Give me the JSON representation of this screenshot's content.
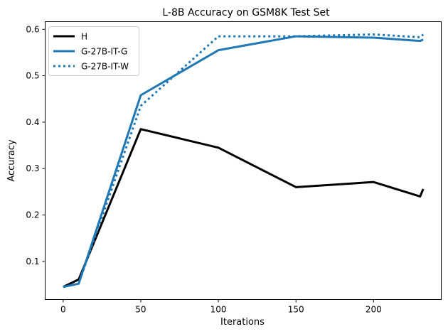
{
  "chart_data": {
    "type": "line",
    "title": "L-8B Accuracy on GSM8K Test Set",
    "xlabel": "Iterations",
    "ylabel": "Accuracy",
    "xlim": [
      -11.6,
      243.6
    ],
    "ylim": [
      0.0178,
      0.6165
    ],
    "xticks": [
      0,
      50,
      100,
      150,
      200
    ],
    "xtick_labels": [
      "0",
      "50",
      "100",
      "150",
      "200"
    ],
    "yticks": [
      0.1,
      0.2,
      0.3,
      0.4,
      0.5,
      0.6
    ],
    "ytick_labels": [
      "0.1",
      "0.2",
      "0.3",
      "0.4",
      "0.5",
      "0.6"
    ],
    "grid": false,
    "legend_position": "top-left",
    "series": [
      {
        "name": "H",
        "color": "#000000",
        "style": "solid",
        "x": [
          0,
          10,
          50,
          100,
          150,
          200,
          230,
          232
        ],
        "y": [
          0.045,
          0.061,
          0.385,
          0.345,
          0.26,
          0.271,
          0.24,
          0.256
        ]
      },
      {
        "name": "G-27B-IT-G",
        "color": "#1f77b4",
        "style": "solid",
        "x": [
          0,
          10,
          50,
          100,
          150,
          200,
          230,
          232
        ],
        "y": [
          0.045,
          0.052,
          0.458,
          0.555,
          0.585,
          0.582,
          0.575,
          0.578
        ]
      },
      {
        "name": "G-27B-IT-W",
        "color": "#1f77b4",
        "style": "dotted",
        "x": [
          0,
          10,
          50,
          100,
          150,
          200,
          230,
          232
        ],
        "y": [
          0.045,
          0.052,
          0.435,
          0.585,
          0.585,
          0.589,
          0.583,
          0.589
        ]
      }
    ]
  }
}
